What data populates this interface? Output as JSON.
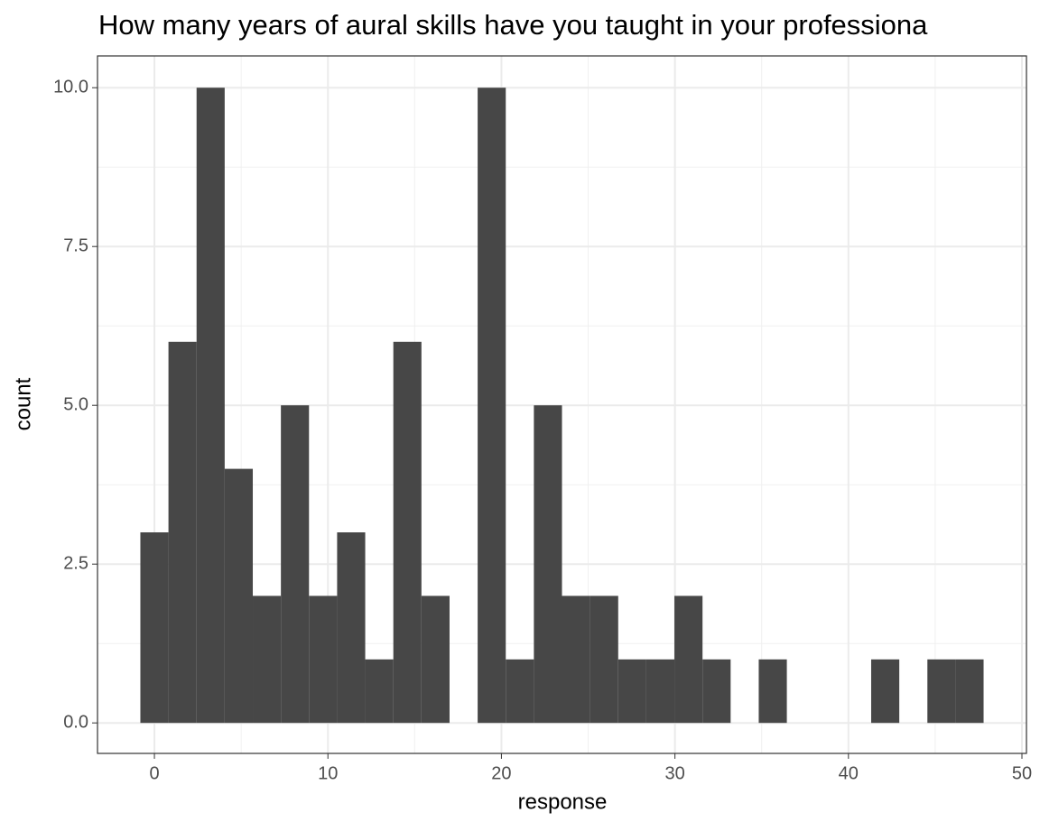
{
  "chart_data": {
    "type": "histogram",
    "title": "How many years of aural skills have you taught in your professiona",
    "x_label": "response",
    "y_label": "count",
    "bins": [
      -0.81,
      0.81,
      2.43,
      4.05,
      5.67,
      7.29,
      8.91,
      10.53,
      12.15,
      13.77,
      15.39,
      17.01,
      18.63,
      20.25,
      21.87,
      23.49,
      25.11,
      26.73,
      28.35,
      29.97,
      31.59,
      33.21,
      34.83,
      36.45,
      38.07,
      39.69,
      41.31,
      42.93,
      44.55,
      46.17,
      47.79
    ],
    "values": [
      3,
      6,
      10,
      4,
      2,
      5,
      2,
      3,
      1,
      6,
      2,
      0,
      10,
      1,
      5,
      2,
      2,
      1,
      1,
      2,
      1,
      0,
      1,
      0,
      0,
      0,
      1,
      0,
      1,
      1
    ],
    "color": "#474747",
    "xlim": [
      -3.28,
      50.26
    ],
    "xticks": [
      0,
      10,
      20,
      30,
      40,
      50
    ],
    "ylim": [
      -0.48,
      10.5
    ],
    "yticks": [
      {
        "value": 0,
        "label": "0.0"
      },
      2.5,
      {
        "value": 5,
        "label": "5.0"
      },
      7.5,
      {
        "value": 10,
        "label": "10.0"
      }
    ],
    "grid": true
  }
}
